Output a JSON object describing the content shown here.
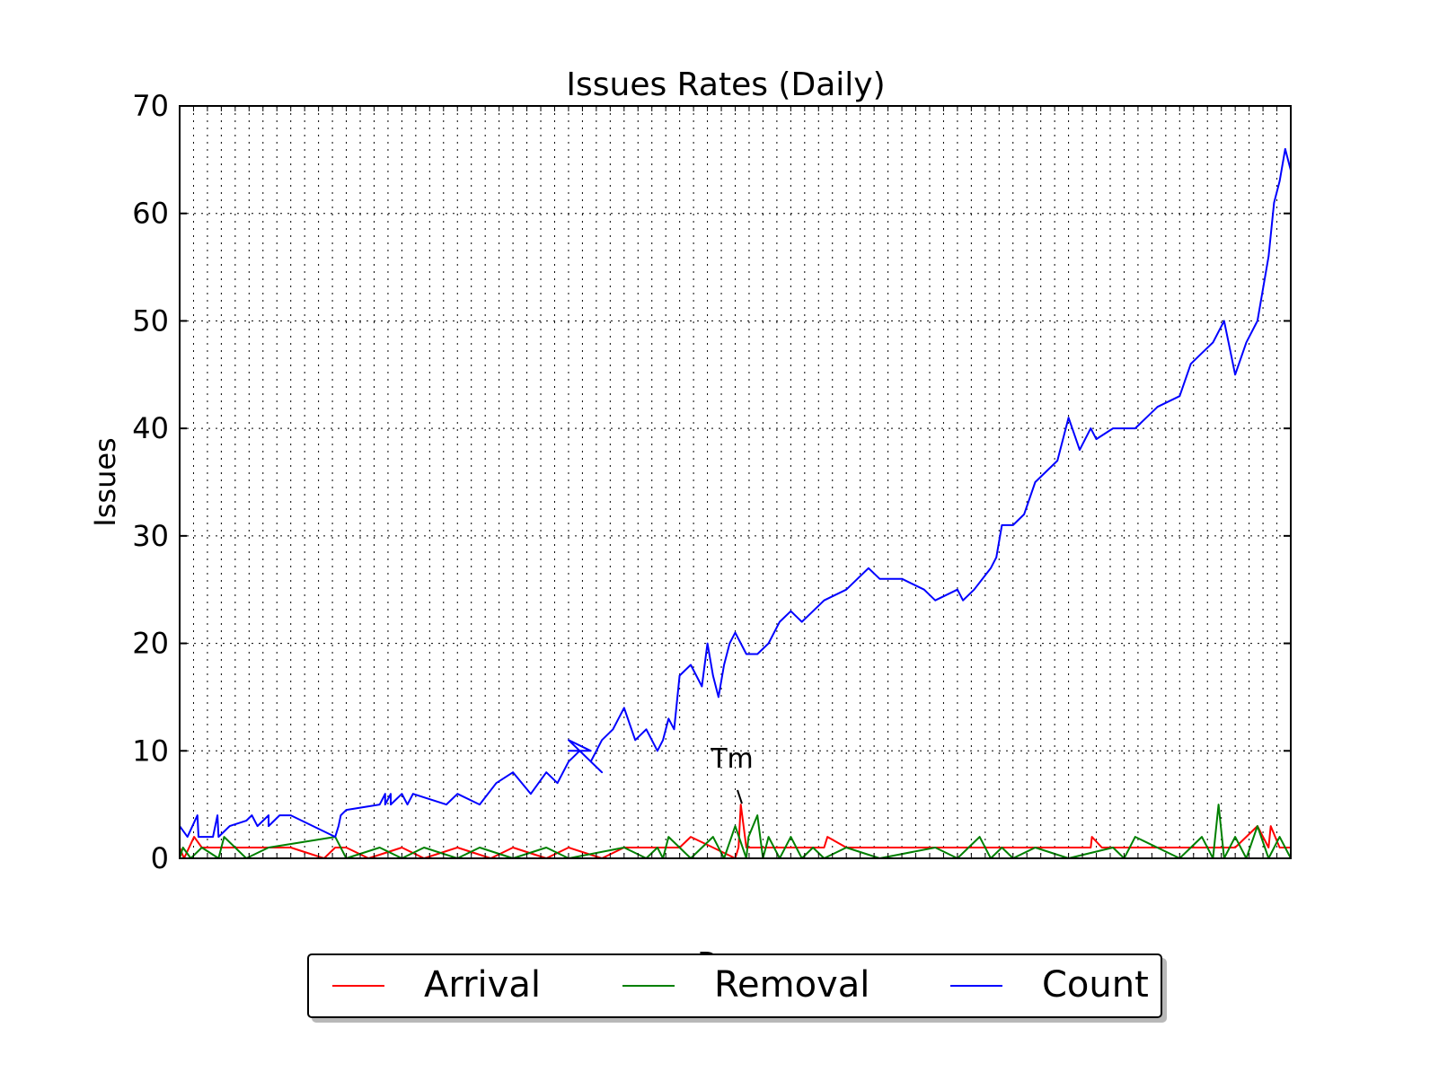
{
  "chart_data": {
    "type": "line",
    "title": "Issues Rates (Daily)",
    "ylabel": "Issues",
    "xlabel": "D",
    "ylim": [
      0,
      70
    ],
    "yticks": [
      0,
      10,
      20,
      30,
      40,
      50,
      60,
      70
    ],
    "grid": true,
    "legend_position": "bottom",
    "annotation": {
      "text": "Tm",
      "x": 0.505,
      "y": 5
    },
    "colors": {
      "Arrival": "#ff0000",
      "Removal": "#008000",
      "Count": "#0000ff"
    },
    "series": [
      {
        "name": "Arrival",
        "x": [
          0.0,
          0.004,
          0.013,
          0.02,
          0.05,
          0.08,
          0.1,
          0.13,
          0.14,
          0.15,
          0.17,
          0.2,
          0.22,
          0.25,
          0.28,
          0.3,
          0.33,
          0.35,
          0.38,
          0.4,
          0.45,
          0.46,
          0.48,
          0.5,
          0.503,
          0.505,
          0.51,
          0.53,
          0.55,
          0.58,
          0.583,
          0.6,
          0.65,
          0.7,
          0.75,
          0.8,
          0.82,
          0.821,
          0.83,
          0.85,
          0.9,
          0.95,
          0.97,
          0.98,
          0.982,
          0.99,
          1.0
        ],
        "values": [
          1,
          0,
          2,
          1,
          1,
          1,
          1,
          0,
          1,
          1,
          0,
          1,
          0,
          1,
          0,
          1,
          0,
          1,
          0,
          1,
          1,
          2,
          1,
          0,
          1,
          5,
          1,
          1,
          1,
          1,
          2,
          1,
          1,
          1,
          1,
          1,
          1,
          2,
          1,
          1,
          1,
          1,
          3,
          1,
          3,
          1,
          1
        ]
      },
      {
        "name": "Removal",
        "x": [
          0.0,
          0.003,
          0.01,
          0.02,
          0.035,
          0.04,
          0.06,
          0.08,
          0.14,
          0.15,
          0.18,
          0.2,
          0.22,
          0.25,
          0.27,
          0.3,
          0.33,
          0.35,
          0.4,
          0.42,
          0.43,
          0.435,
          0.44,
          0.46,
          0.48,
          0.49,
          0.5,
          0.51,
          0.512,
          0.52,
          0.525,
          0.53,
          0.54,
          0.55,
          0.56,
          0.57,
          0.58,
          0.6,
          0.63,
          0.68,
          0.7,
          0.72,
          0.73,
          0.74,
          0.75,
          0.77,
          0.8,
          0.84,
          0.85,
          0.86,
          0.9,
          0.92,
          0.93,
          0.935,
          0.94,
          0.95,
          0.96,
          0.97,
          0.98,
          0.99,
          1.0
        ],
        "values": [
          0,
          1,
          0,
          1,
          0,
          2,
          0,
          1,
          2,
          0,
          1,
          0,
          1,
          0,
          1,
          0,
          1,
          0,
          1,
          0,
          1,
          0,
          2,
          0,
          2,
          0,
          3,
          0,
          2,
          4,
          0,
          2,
          0,
          2,
          0,
          1,
          0,
          1,
          0,
          1,
          0,
          2,
          0,
          1,
          0,
          1,
          0,
          1,
          0,
          2,
          0,
          2,
          0,
          5,
          0,
          2,
          0,
          3,
          0,
          2,
          0
        ]
      },
      {
        "name": "Count",
        "x": [
          0.0,
          0.007,
          0.016,
          0.017,
          0.03,
          0.034,
          0.035,
          0.04,
          0.045,
          0.06,
          0.065,
          0.07,
          0.075,
          0.08,
          0.08,
          0.09,
          0.1,
          0.14,
          0.143,
          0.145,
          0.15,
          0.18,
          0.185,
          0.185,
          0.19,
          0.19,
          0.2,
          0.205,
          0.21,
          0.24,
          0.25,
          0.27,
          0.285,
          0.3,
          0.316,
          0.33,
          0.34,
          0.35,
          0.36,
          0.35,
          0.37,
          0.35,
          0.38,
          0.37,
          0.38,
          0.39,
          0.4,
          0.41,
          0.42,
          0.43,
          0.435,
          0.44,
          0.445,
          0.45,
          0.46,
          0.47,
          0.475,
          0.48,
          0.485,
          0.49,
          0.495,
          0.5,
          0.51,
          0.52,
          0.53,
          0.54,
          0.55,
          0.56,
          0.57,
          0.58,
          0.6,
          0.61,
          0.62,
          0.63,
          0.65,
          0.67,
          0.68,
          0.7,
          0.705,
          0.715,
          0.73,
          0.735,
          0.74,
          0.75,
          0.76,
          0.77,
          0.79,
          0.8,
          0.81,
          0.82,
          0.825,
          0.84,
          0.86,
          0.87,
          0.88,
          0.9,
          0.91,
          0.92,
          0.93,
          0.94,
          0.95,
          0.96,
          0.97,
          0.98,
          0.985,
          0.99,
          0.995,
          1.0
        ],
        "values": [
          3,
          2,
          4,
          2,
          2,
          4,
          2,
          2.5,
          3,
          3.5,
          4,
          3,
          3.5,
          4,
          3,
          4,
          4,
          2,
          3,
          4,
          4.5,
          5,
          6,
          5,
          6,
          5,
          6,
          5,
          6,
          5,
          6,
          5,
          7,
          8,
          6,
          8,
          7,
          9,
          10,
          10,
          10,
          11,
          8,
          9,
          11,
          12,
          14,
          11,
          12,
          10,
          11,
          13,
          12,
          17,
          18,
          16,
          20,
          17,
          15,
          18,
          20,
          21,
          19,
          19,
          20,
          22,
          23,
          22,
          23,
          24,
          25,
          26,
          27,
          26,
          26,
          25,
          24,
          25,
          24,
          25,
          27,
          28,
          31,
          31,
          32,
          35,
          37,
          41,
          38,
          40,
          39,
          40,
          40,
          41,
          42,
          43,
          46,
          47,
          48,
          50,
          45,
          48,
          50,
          56,
          61,
          63,
          66,
          64
        ]
      }
    ]
  }
}
